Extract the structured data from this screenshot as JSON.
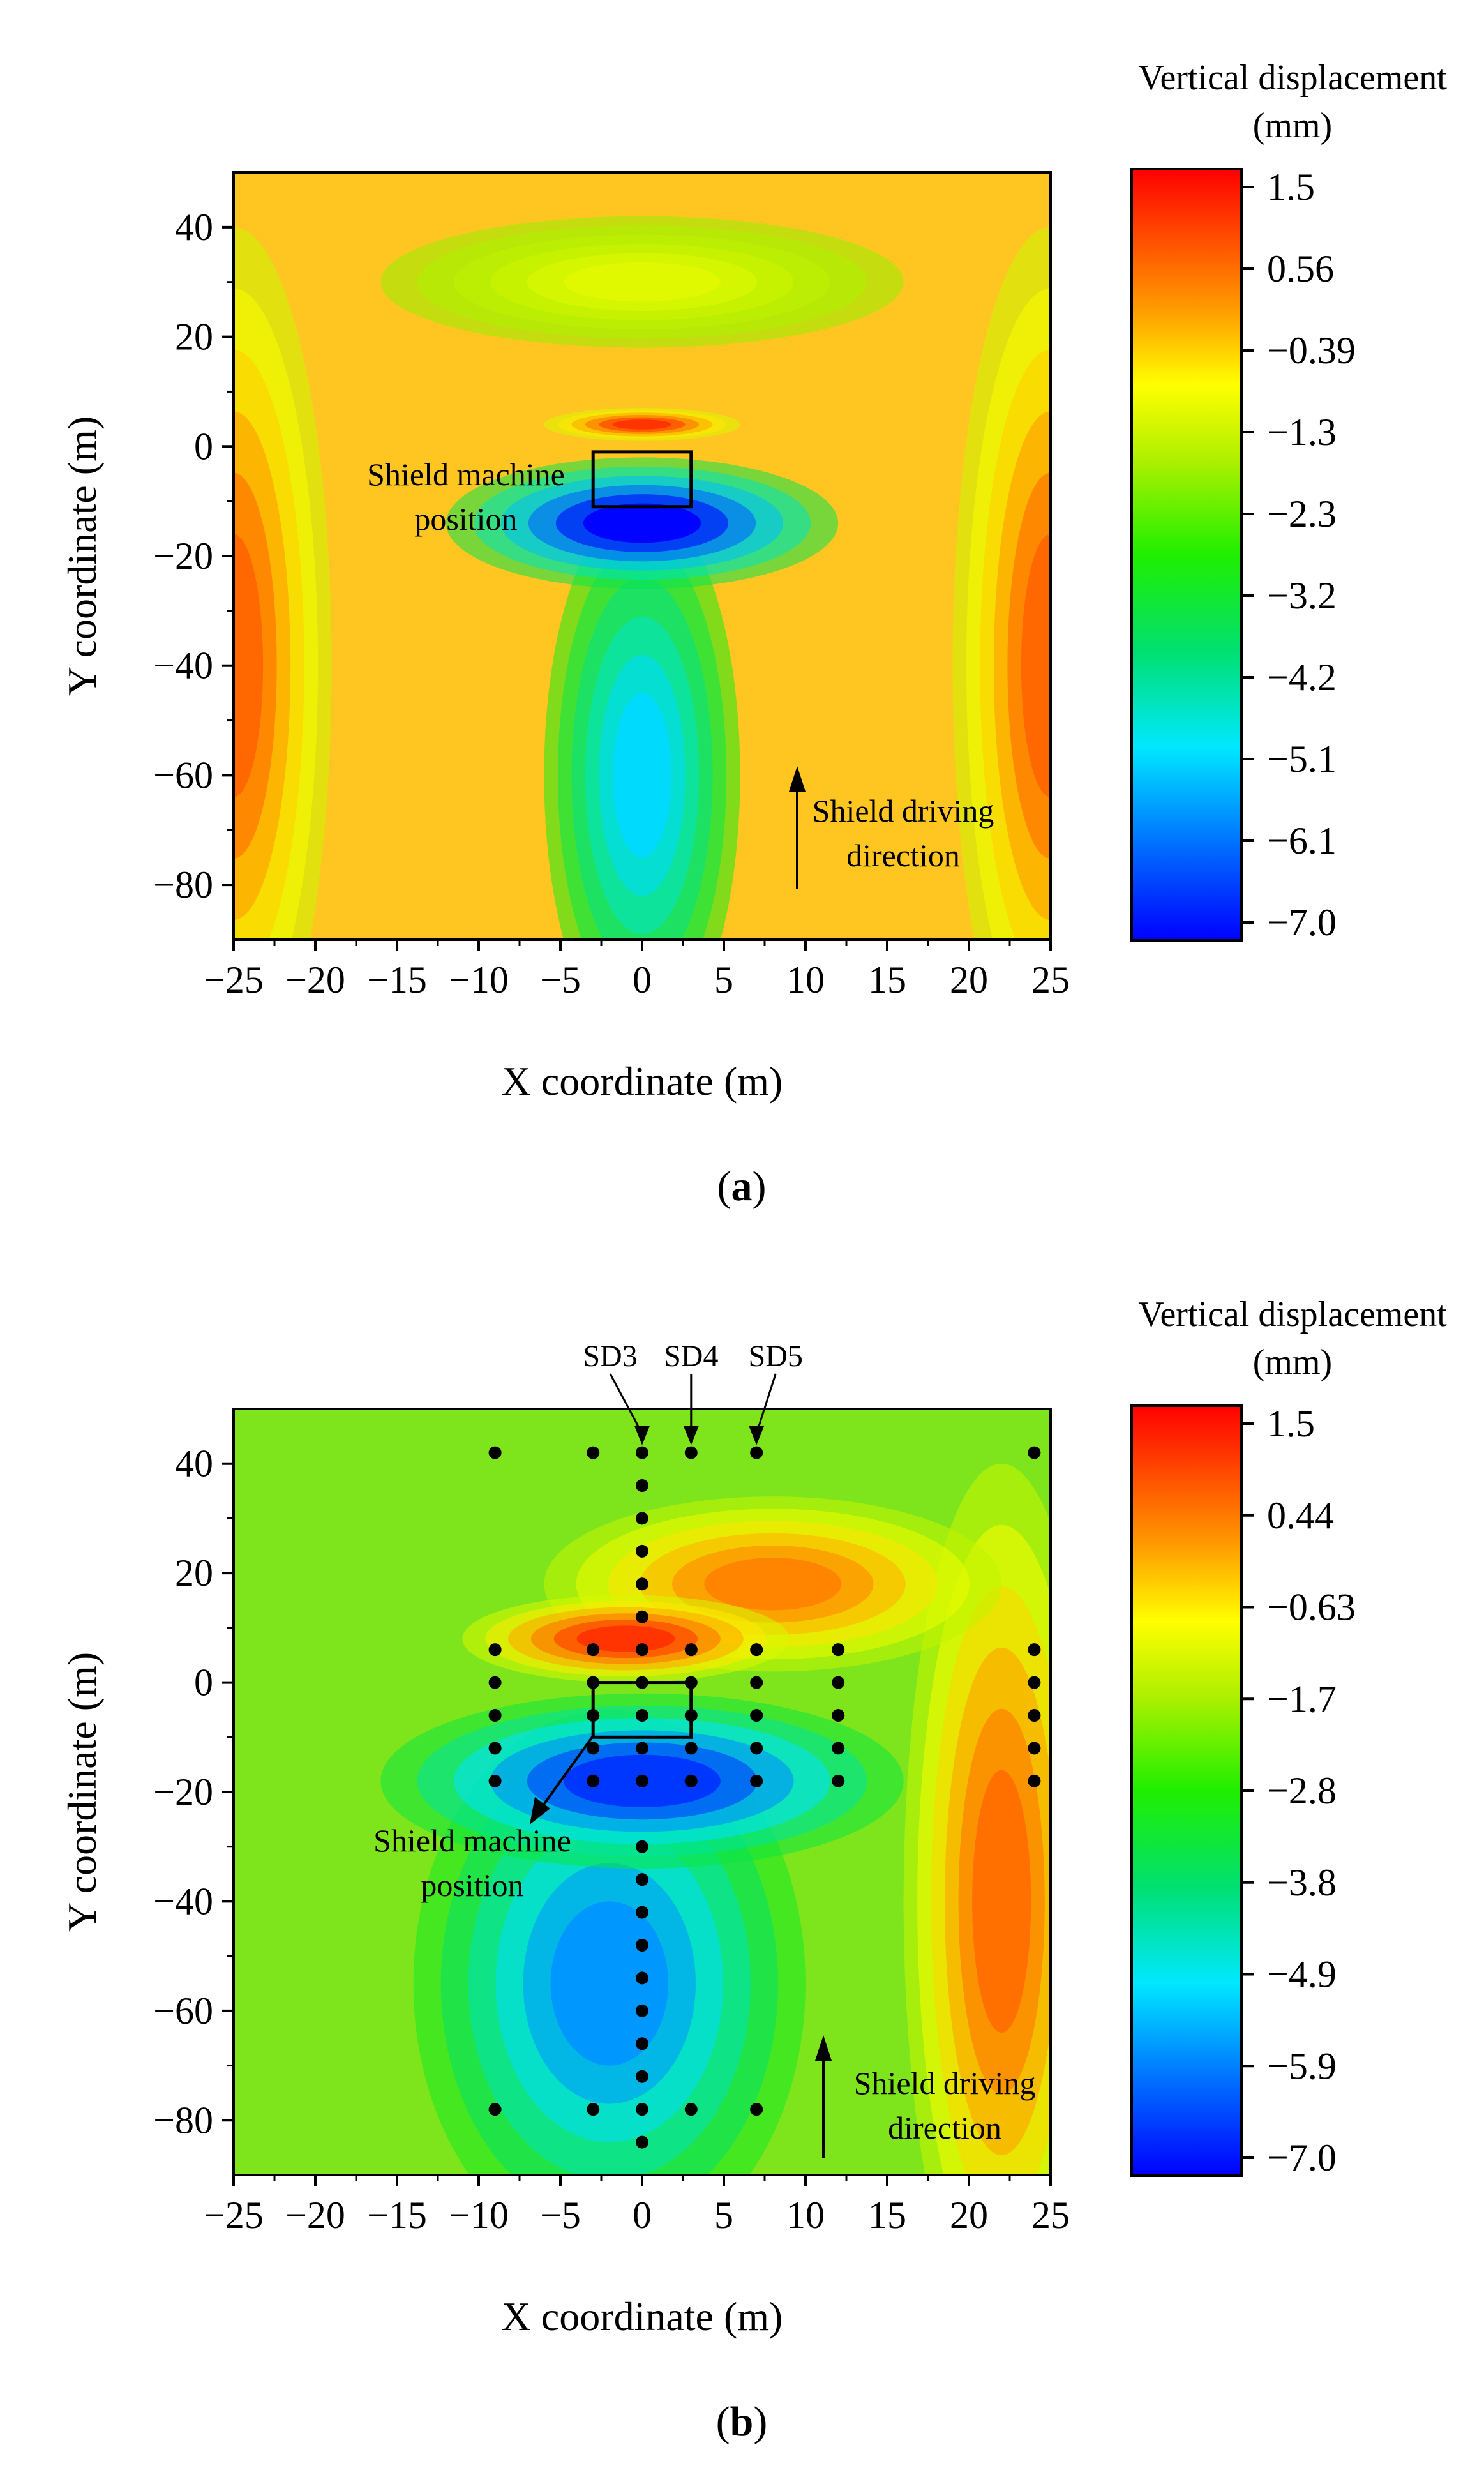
{
  "chart_data": [
    {
      "type": "heatmap",
      "panel_label": "a",
      "title": "",
      "xlabel": "X coordinate (m)",
      "ylabel": "Y coordinate (m)",
      "xlim": [
        -25,
        25
      ],
      "ylim": [
        -90,
        50
      ],
      "xticks": [
        "−25",
        "−20",
        "−15",
        "−10",
        "−5",
        "0",
        "5",
        "10",
        "15",
        "20",
        "25"
      ],
      "yticks": [
        "40",
        "20",
        "0",
        "−20",
        "−40",
        "−60",
        "−80"
      ],
      "ytick_values": [
        40,
        20,
        0,
        -20,
        -40,
        -60,
        -80
      ],
      "colorbar": {
        "title_line1": "Vertical displacement",
        "title_line2": "(mm)",
        "range": [
          -7.0,
          1.5
        ],
        "ticks": [
          "1.5",
          "0.56",
          "−0.39",
          "−1.3",
          "−2.3",
          "−3.2",
          "−4.2",
          "−5.1",
          "−6.1",
          "−7.0"
        ]
      },
      "field": [
        {
          "x": -25,
          "y": -40,
          "value": 0.5,
          "rx": 3,
          "ry": 40
        },
        {
          "x": 25,
          "y": -40,
          "value": 0.5,
          "rx": 3,
          "ry": 40
        },
        {
          "x": 0,
          "y": 30,
          "value": -1.2,
          "rx": 8,
          "ry": 6
        },
        {
          "x": 0,
          "y": 4,
          "value": 1.0,
          "rx": 3,
          "ry": 1.5
        },
        {
          "x": 0,
          "y": -60,
          "value": -5.0,
          "rx": 3,
          "ry": 25
        },
        {
          "x": 0,
          "y": -14,
          "value": -7.0,
          "rx": 6,
          "ry": 6
        }
      ],
      "shield_box": {
        "x0": -3,
        "x1": 3,
        "y0": -11,
        "y1": -1
      },
      "annotations": [
        {
          "line1": "Shield machine",
          "line2": "position"
        },
        {
          "line1": "Shield driving",
          "line2": "direction"
        }
      ]
    },
    {
      "type": "heatmap",
      "panel_label": "b",
      "title": "",
      "xlabel": "X coordinate (m)",
      "ylabel": "Y coordinate (m)",
      "xlim": [
        -25,
        25
      ],
      "ylim": [
        -90,
        50
      ],
      "xticks": [
        "−25",
        "−20",
        "−15",
        "−10",
        "−5",
        "0",
        "5",
        "10",
        "15",
        "20",
        "25"
      ],
      "yticks": [
        "40",
        "20",
        "0",
        "−20",
        "−40",
        "−60",
        "−80"
      ],
      "ytick_values": [
        40,
        20,
        0,
        -20,
        -40,
        -60,
        -80
      ],
      "colorbar": {
        "title_line1": "Vertical displacement",
        "title_line2": "(mm)",
        "range": [
          -7.0,
          1.5
        ],
        "ticks": [
          "1.5",
          "0.44",
          "−0.63",
          "−1.7",
          "−2.8",
          "−3.8",
          "−4.9",
          "−5.9",
          "−7.0"
        ]
      },
      "field": [
        {
          "x": 22,
          "y": -40,
          "value": 0.4,
          "rx": 3,
          "ry": 40
        },
        {
          "x": 8,
          "y": 18,
          "value": 0.2,
          "rx": 7,
          "ry": 8
        },
        {
          "x": -1,
          "y": 8,
          "value": 1.0,
          "rx": 5,
          "ry": 4
        },
        {
          "x": -2,
          "y": -55,
          "value": -5.6,
          "rx": 6,
          "ry": 25
        },
        {
          "x": 0,
          "y": -18,
          "value": -6.5,
          "rx": 8,
          "ry": 8
        }
      ],
      "shield_box": {
        "x0": -3,
        "x1": 3,
        "y0": -10,
        "y1": 0
      },
      "labels": [
        "SD3",
        "SD4",
        "SD5"
      ],
      "label_targets_x": [
        0,
        3,
        7
      ],
      "points": [
        {
          "x": -9,
          "y": 42
        },
        {
          "x": -3,
          "y": 42
        },
        {
          "x": 0,
          "y": 42
        },
        {
          "x": 3,
          "y": 42
        },
        {
          "x": 7,
          "y": 42
        },
        {
          "x": 24,
          "y": 42
        },
        {
          "x": 0,
          "y": 36
        },
        {
          "x": 0,
          "y": 30
        },
        {
          "x": 0,
          "y": 24
        },
        {
          "x": 0,
          "y": 18
        },
        {
          "x": 0,
          "y": 12
        },
        {
          "x": -9,
          "y": 6
        },
        {
          "x": -3,
          "y": 6
        },
        {
          "x": 0,
          "y": 6
        },
        {
          "x": 3,
          "y": 6
        },
        {
          "x": 7,
          "y": 6
        },
        {
          "x": 12,
          "y": 6
        },
        {
          "x": 24,
          "y": 6
        },
        {
          "x": -9,
          "y": 0
        },
        {
          "x": -3,
          "y": 0
        },
        {
          "x": 0,
          "y": 0
        },
        {
          "x": 3,
          "y": 0
        },
        {
          "x": 7,
          "y": 0
        },
        {
          "x": 12,
          "y": 0
        },
        {
          "x": 24,
          "y": 0
        },
        {
          "x": -9,
          "y": -6
        },
        {
          "x": -3,
          "y": -6
        },
        {
          "x": 0,
          "y": -6
        },
        {
          "x": 3,
          "y": -6
        },
        {
          "x": 7,
          "y": -6
        },
        {
          "x": 12,
          "y": -6
        },
        {
          "x": 24,
          "y": -6
        },
        {
          "x": -9,
          "y": -12
        },
        {
          "x": -3,
          "y": -12
        },
        {
          "x": 0,
          "y": -12
        },
        {
          "x": 3,
          "y": -12
        },
        {
          "x": 7,
          "y": -12
        },
        {
          "x": 12,
          "y": -12
        },
        {
          "x": 24,
          "y": -12
        },
        {
          "x": -9,
          "y": -18
        },
        {
          "x": -3,
          "y": -18
        },
        {
          "x": 0,
          "y": -18
        },
        {
          "x": 3,
          "y": -18
        },
        {
          "x": 7,
          "y": -18
        },
        {
          "x": 12,
          "y": -18
        },
        {
          "x": 24,
          "y": -18
        },
        {
          "x": 0,
          "y": -30
        },
        {
          "x": 0,
          "y": -36
        },
        {
          "x": 0,
          "y": -42
        },
        {
          "x": 0,
          "y": -48
        },
        {
          "x": 0,
          "y": -54
        },
        {
          "x": 0,
          "y": -60
        },
        {
          "x": 0,
          "y": -66
        },
        {
          "x": 0,
          "y": -72
        },
        {
          "x": -9,
          "y": -78
        },
        {
          "x": -3,
          "y": -78
        },
        {
          "x": 0,
          "y": -78
        },
        {
          "x": 3,
          "y": -78
        },
        {
          "x": 7,
          "y": -78
        },
        {
          "x": 0,
          "y": -84
        }
      ],
      "annotations": [
        {
          "line1": "Shield machine",
          "line2": "position"
        },
        {
          "line1": "Shield driving",
          "line2": "direction"
        }
      ]
    }
  ]
}
